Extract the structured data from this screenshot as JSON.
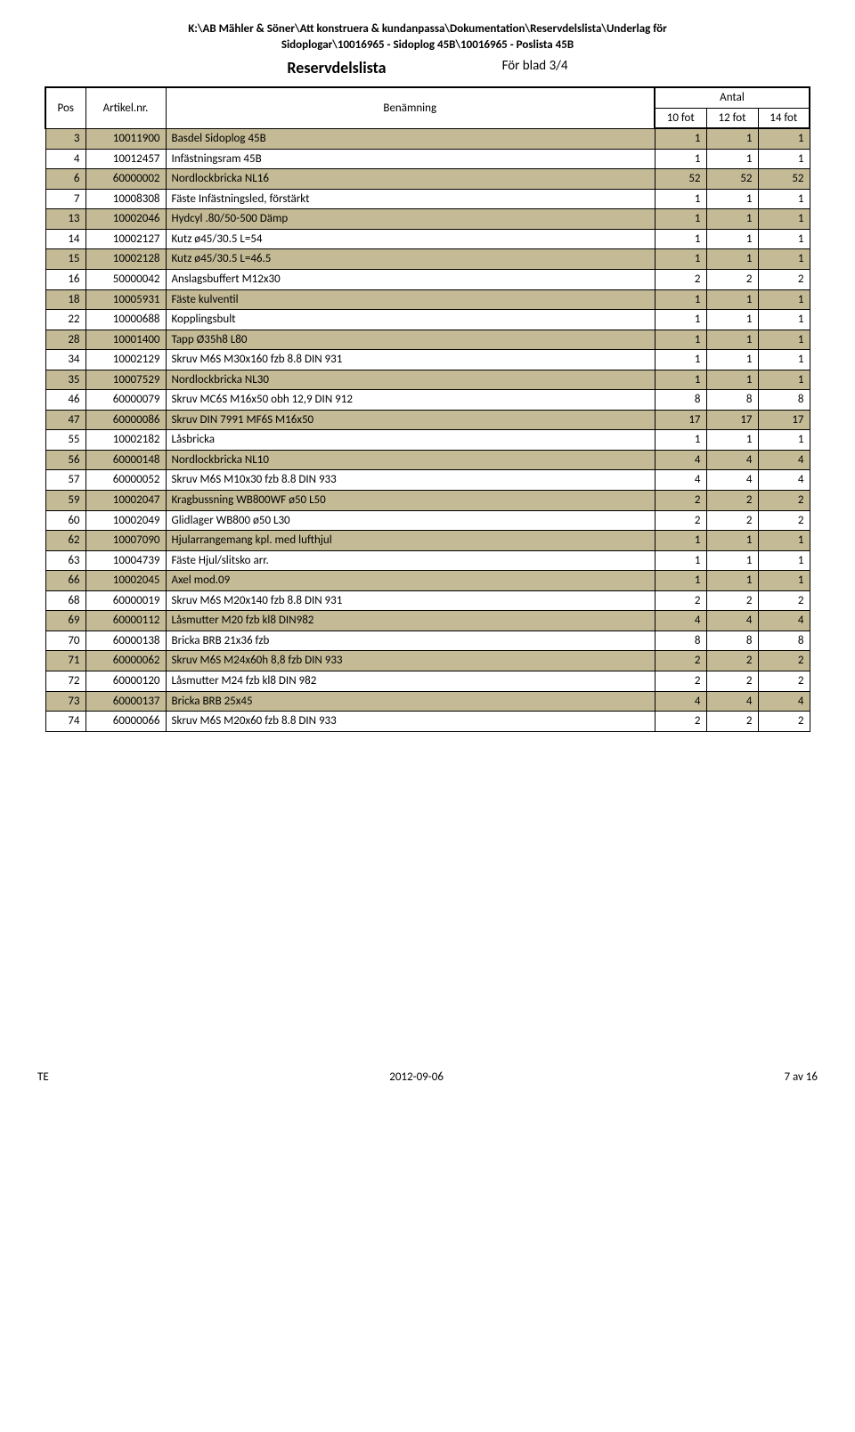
{
  "header": {
    "path_line1": "K:\\AB Mähler & Söner\\Att konstruera & kundanpassa\\Dokumentation\\Reservdelslista\\Underlag för",
    "path_line2": "Sidoplogar\\10016965 - Sidoplog 45B\\10016965 - Poslista 45B",
    "title": "Reservdelslista",
    "sheet": "För blad 3/4"
  },
  "columns": {
    "pos": "Pos",
    "art": "Artikel.nr.",
    "name": "Benämning",
    "antal": "Antal",
    "q1": "10 fot",
    "q2": "12 fot",
    "q3": "14 fot"
  },
  "rows": [
    {
      "pos": 3,
      "art": "10011900",
      "name": "Basdel Sidoplog 45B",
      "q": [
        1,
        1,
        1
      ]
    },
    {
      "pos": 4,
      "art": "10012457",
      "name": "Infästningsram 45B",
      "q": [
        1,
        1,
        1
      ]
    },
    {
      "pos": 6,
      "art": "60000002",
      "name": "Nordlockbricka NL16",
      "q": [
        52,
        52,
        52
      ]
    },
    {
      "pos": 7,
      "art": "10008308",
      "name": "Fäste Infästningsled, förstärkt",
      "q": [
        1,
        1,
        1
      ]
    },
    {
      "pos": 13,
      "art": "10002046",
      "name": "Hydcyl .80/50-500 Dämp",
      "q": [
        1,
        1,
        1
      ]
    },
    {
      "pos": 14,
      "art": "10002127",
      "name": "Kutz ø45/30.5 L=54",
      "q": [
        1,
        1,
        1
      ]
    },
    {
      "pos": 15,
      "art": "10002128",
      "name": "Kutz ø45/30.5 L=46.5",
      "q": [
        1,
        1,
        1
      ]
    },
    {
      "pos": 16,
      "art": "50000042",
      "name": "Anslagsbuffert M12x30",
      "q": [
        2,
        2,
        2
      ]
    },
    {
      "pos": 18,
      "art": "10005931",
      "name": "Fäste kulventil",
      "q": [
        1,
        1,
        1
      ]
    },
    {
      "pos": 22,
      "art": "10000688",
      "name": "Kopplingsbult",
      "q": [
        1,
        1,
        1
      ]
    },
    {
      "pos": 28,
      "art": "10001400",
      "name": "Tapp Ø35h8 L80",
      "q": [
        1,
        1,
        1
      ]
    },
    {
      "pos": 34,
      "art": "10002129",
      "name": "Skruv M6S M30x160 fzb 8.8 DIN 931",
      "q": [
        1,
        1,
        1
      ]
    },
    {
      "pos": 35,
      "art": "10007529",
      "name": "Nordlockbricka NL30",
      "q": [
        1,
        1,
        1
      ]
    },
    {
      "pos": 46,
      "art": "60000079",
      "name": "Skruv MC6S M16x50 obh 12,9 DIN 912",
      "q": [
        8,
        8,
        8
      ]
    },
    {
      "pos": 47,
      "art": "60000086",
      "name": "Skruv DIN 7991 MF6S M16x50",
      "q": [
        17,
        17,
        17
      ]
    },
    {
      "pos": 55,
      "art": "10002182",
      "name": "Låsbricka",
      "q": [
        1,
        1,
        1
      ]
    },
    {
      "pos": 56,
      "art": "60000148",
      "name": "Nordlockbricka NL10",
      "q": [
        4,
        4,
        4
      ]
    },
    {
      "pos": 57,
      "art": "60000052",
      "name": "Skruv M6S M10x30 fzb 8.8 DIN 933",
      "q": [
        4,
        4,
        4
      ]
    },
    {
      "pos": 59,
      "art": "10002047",
      "name": "Kragbussning WB800WF ø50 L50",
      "q": [
        2,
        2,
        2
      ]
    },
    {
      "pos": 60,
      "art": "10002049",
      "name": "Glidlager WB800 ø50 L30",
      "q": [
        2,
        2,
        2
      ]
    },
    {
      "pos": 62,
      "art": "10007090",
      "name": "Hjularrangemang kpl. med lufthjul",
      "q": [
        1,
        1,
        1
      ]
    },
    {
      "pos": 63,
      "art": "10004739",
      "name": "Fäste Hjul/slitsko arr.",
      "q": [
        1,
        1,
        1
      ]
    },
    {
      "pos": 66,
      "art": "10002045",
      "name": "Axel mod.09",
      "q": [
        1,
        1,
        1
      ]
    },
    {
      "pos": 68,
      "art": "60000019",
      "name": "Skruv M6S M20x140 fzb 8.8 DIN 931",
      "q": [
        2,
        2,
        2
      ]
    },
    {
      "pos": 69,
      "art": "60000112",
      "name": "Låsmutter M20 fzb kl8 DIN982",
      "q": [
        4,
        4,
        4
      ]
    },
    {
      "pos": 70,
      "art": "60000138",
      "name": "Bricka BRB 21x36 fzb",
      "q": [
        8,
        8,
        8
      ]
    },
    {
      "pos": 71,
      "art": "60000062",
      "name": "Skruv M6S M24x60h 8,8 fzb DIN 933",
      "q": [
        2,
        2,
        2
      ]
    },
    {
      "pos": 72,
      "art": "60000120",
      "name": "Låsmutter M24 fzb kl8 DIN 982",
      "q": [
        2,
        2,
        2
      ]
    },
    {
      "pos": 73,
      "art": "60000137",
      "name": "Bricka BRB  25x45",
      "q": [
        4,
        4,
        4
      ]
    },
    {
      "pos": 74,
      "art": "60000066",
      "name": "Skruv M6S M20x60 fzb 8.8 DIN 933",
      "q": [
        2,
        2,
        2
      ]
    }
  ],
  "style": {
    "stripe_color": "#c4bb96",
    "background_color": "#ffffff",
    "border_color": "#000000"
  },
  "footer": {
    "left": "TE",
    "center": "2012-09-06",
    "right": "7 av 16"
  }
}
